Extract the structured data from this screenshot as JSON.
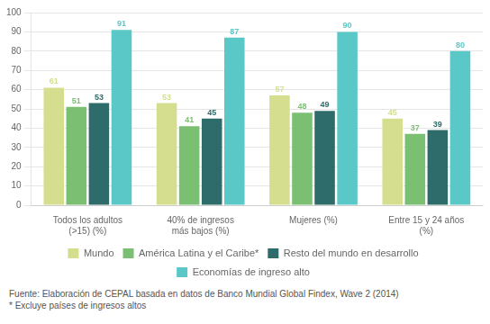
{
  "chart_data": {
    "type": "bar",
    "categories": [
      "Todos los adultos\n(>15) (%)",
      "40% de ingresos\nmás bajos (%)",
      "Mujeres (%)",
      "Entre 15 y 24 años\n(%)"
    ],
    "series": [
      {
        "name": "Mundo",
        "color": "#d4de8e",
        "values": [
          61,
          53,
          57,
          45
        ]
      },
      {
        "name": "América Latina y el Caribe*",
        "color": "#7bbf72",
        "values": [
          51,
          41,
          48,
          37
        ]
      },
      {
        "name": "Resto del mundo en desarrollo",
        "color": "#2e6b6b",
        "values": [
          53,
          45,
          49,
          39
        ]
      },
      {
        "name": "Economías de ingreso alto",
        "color": "#5bc8c8",
        "values": [
          91,
          87,
          90,
          80
        ]
      }
    ],
    "ylim": [
      0,
      100
    ],
    "yticks": [
      0,
      10,
      20,
      30,
      40,
      50,
      60,
      70,
      80,
      90,
      100
    ],
    "grid": true,
    "legend": "bottom",
    "data_labels": true,
    "annotations": [
      "Fuente: Elaboración de CEPAL basada en datos de Banco Mundial Global Findex, Wave 2 (2014)",
      "* Excluye países de ingresos altos"
    ]
  }
}
